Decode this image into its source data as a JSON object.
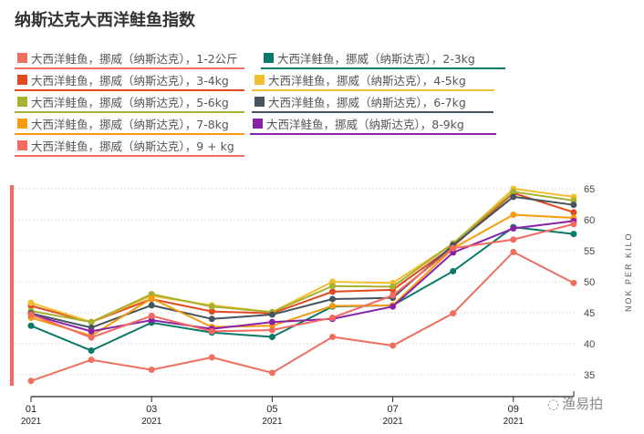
{
  "title": "纳斯达克大西洋鲑鱼指数",
  "watermark": "渔易拍",
  "chart_data": {
    "type": "line",
    "title": "纳斯达克大西洋鲑鱼指数",
    "ylabel": "NOK PER KILO",
    "ylim": [
      33,
      66
    ],
    "yticks": [
      35,
      40,
      45,
      50,
      55,
      60,
      65
    ],
    "x": [
      "01/2021",
      "02/2021",
      "03/2021",
      "04/2021",
      "05/2021",
      "06/2021",
      "07/2021",
      "08/2021",
      "09/2021",
      "10/2021"
    ],
    "xticks": [
      {
        "m": "01",
        "y": "2021",
        "i": 0
      },
      {
        "m": "03",
        "y": "2021",
        "i": 2
      },
      {
        "m": "05",
        "y": "2021",
        "i": 4
      },
      {
        "m": "07",
        "y": "2021",
        "i": 6
      },
      {
        "m": "09",
        "y": "2021",
        "i": 8
      }
    ],
    "grid": true,
    "legend": "top",
    "series": [
      {
        "name": "大西洋鲑鱼，挪威（纳斯达克），1-2公斤",
        "color": "#f07060",
        "values": [
          34.0,
          37.4,
          35.8,
          37.8,
          35.3,
          41.1,
          39.7,
          44.9,
          54.8,
          49.8
        ]
      },
      {
        "name": "大西洋鲑鱼，挪威（纳斯达克），2-3kg",
        "color": "#0a7a68",
        "values": [
          42.9,
          38.9,
          43.4,
          41.8,
          41.1,
          46.0,
          46.2,
          51.7,
          58.8,
          57.7
        ]
      },
      {
        "name": "大西洋鲑鱼，挪威（纳斯达克），3-4kg",
        "color": "#e04a1e",
        "values": [
          46.1,
          43.5,
          47.2,
          45.2,
          44.9,
          48.4,
          48.7,
          55.7,
          64.3,
          61.2
        ]
      },
      {
        "name": "大西洋鲑鱼，挪威（纳斯达克），4-5kg",
        "color": "#f2bf30",
        "values": [
          46.6,
          43.5,
          47.7,
          46.2,
          45.1,
          50.0,
          49.8,
          56.1,
          65.0,
          63.7
        ]
      },
      {
        "name": "大西洋鲑鱼，挪威（纳斯达克），5-6kg",
        "color": "#a8b030",
        "values": [
          45.3,
          43.5,
          48.0,
          46.0,
          45.1,
          49.3,
          49.2,
          56.2,
          64.5,
          63.1
        ]
      },
      {
        "name": "大西洋鲑鱼，挪威（纳斯达克），6-7kg",
        "color": "#45545e",
        "values": [
          44.9,
          42.6,
          46.2,
          44.0,
          44.7,
          47.2,
          47.4,
          55.9,
          63.7,
          62.4
        ]
      },
      {
        "name": "大西洋鲑鱼，挪威（纳斯达克），7-8kg",
        "color": "#f59c10",
        "values": [
          44.2,
          41.3,
          47.3,
          42.7,
          42.9,
          46.1,
          46.2,
          55.4,
          60.8,
          60.3
        ]
      },
      {
        "name": "大西洋鲑鱼，挪威（纳斯达克），8-9kg",
        "color": "#8a22a8",
        "values": [
          44.7,
          42.0,
          43.8,
          42.4,
          43.5,
          44.0,
          46.0,
          54.7,
          58.6,
          59.8
        ]
      },
      {
        "name": "大西洋鲑鱼，挪威（纳斯达克），9 + kg",
        "color": "#f46a5e",
        "values": [
          44.7,
          41.0,
          44.5,
          42.0,
          42.2,
          44.2,
          47.8,
          55.4,
          56.8,
          59.3
        ]
      }
    ]
  }
}
